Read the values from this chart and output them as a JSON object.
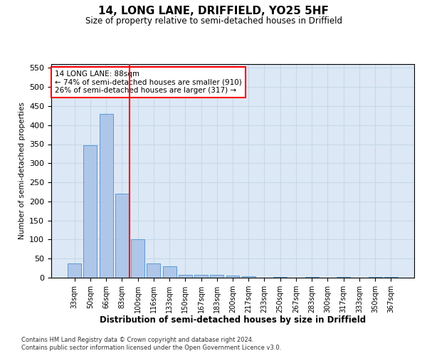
{
  "title": "14, LONG LANE, DRIFFIELD, YO25 5HF",
  "subtitle": "Size of property relative to semi-detached houses in Driffield",
  "xlabel": "Distribution of semi-detached houses by size in Driffield",
  "ylabel": "Number of semi-detached properties",
  "categories": [
    "33sqm",
    "50sqm",
    "66sqm",
    "83sqm",
    "100sqm",
    "116sqm",
    "133sqm",
    "150sqm",
    "167sqm",
    "183sqm",
    "200sqm",
    "217sqm",
    "233sqm",
    "250sqm",
    "267sqm",
    "283sqm",
    "300sqm",
    "317sqm",
    "333sqm",
    "350sqm",
    "367sqm"
  ],
  "values": [
    37,
    348,
    430,
    220,
    100,
    37,
    30,
    8,
    8,
    8,
    5,
    3,
    0,
    2,
    0,
    2,
    0,
    2,
    0,
    2,
    2
  ],
  "bar_color": "#aec6e8",
  "bar_edge_color": "#5b9bd5",
  "grid_color": "#c8d8e8",
  "background_color": "#dce8f5",
  "red_line_x": 3.5,
  "annotation_box_text": "14 LONG LANE: 88sqm\n← 74% of semi-detached houses are smaller (910)\n26% of semi-detached houses are larger (317) →",
  "footnote1": "Contains HM Land Registry data © Crown copyright and database right 2024.",
  "footnote2": "Contains public sector information licensed under the Open Government Licence v3.0.",
  "ylim": [
    0,
    560
  ],
  "yticks": [
    0,
    50,
    100,
    150,
    200,
    250,
    300,
    350,
    400,
    450,
    500,
    550
  ]
}
